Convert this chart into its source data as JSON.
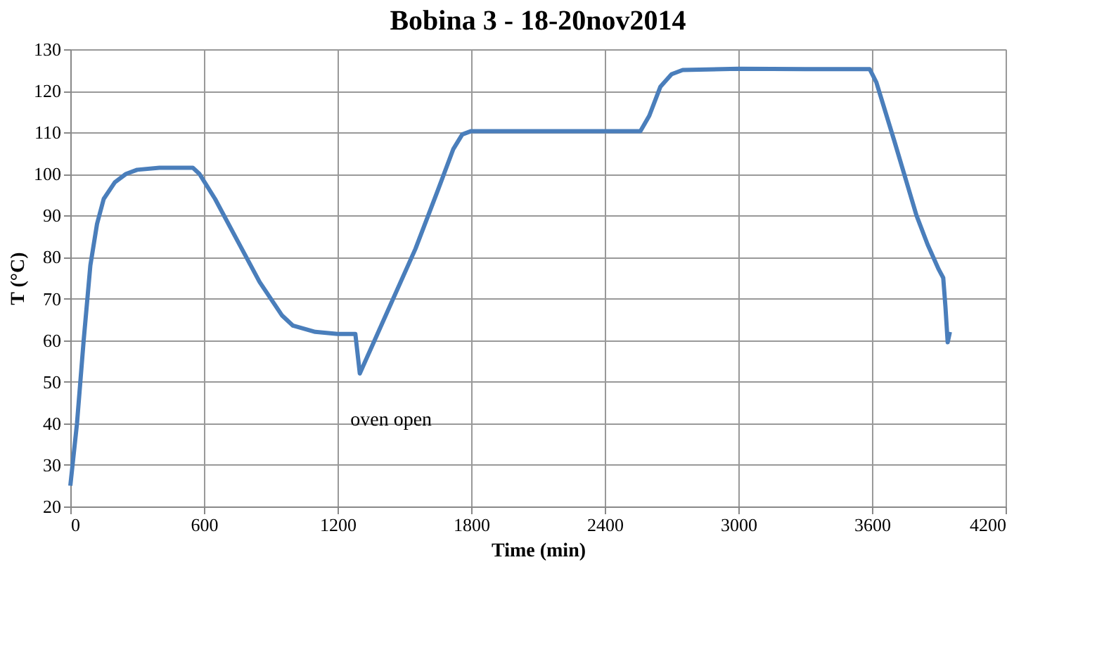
{
  "chart_data": {
    "type": "line",
    "title": "Bobina 3 - 18-20nov2014",
    "xlabel": "Time (min)",
    "ylabel": "T (°C)",
    "x": [
      0,
      30,
      60,
      90,
      120,
      150,
      200,
      250,
      300,
      400,
      550,
      580,
      650,
      750,
      850,
      950,
      1000,
      1100,
      1200,
      1280,
      1300,
      1350,
      1450,
      1550,
      1650,
      1720,
      1760,
      1800,
      2000,
      2300,
      2560,
      2600,
      2650,
      2700,
      2750,
      3000,
      3300,
      3590,
      3620,
      3700,
      3750,
      3800,
      3850,
      3900,
      3920,
      3930,
      3940,
      3950
    ],
    "series": [
      {
        "color": "#4a7ebb",
        "values": [
          25,
          40,
          60,
          78,
          88,
          94,
          98,
          100,
          101,
          101.5,
          101.5,
          100,
          94,
          84,
          74,
          66,
          63.5,
          62,
          61.5,
          61.5,
          52,
          58,
          70,
          82,
          96,
          106,
          109.5,
          110.3,
          110.3,
          110.3,
          110.3,
          114,
          121,
          124,
          125,
          125.3,
          125.2,
          125.2,
          122,
          108,
          99,
          90,
          83,
          77,
          75,
          68,
          59.5,
          62
        ]
      }
    ],
    "xlim": [
      0,
      4200
    ],
    "xticks": [
      0,
      600,
      1200,
      1800,
      2400,
      3000,
      3600,
      4200
    ],
    "ylim": [
      20,
      130
    ],
    "yticks": [
      20,
      30,
      40,
      50,
      60,
      70,
      80,
      90,
      100,
      110,
      120,
      130
    ],
    "grid": true,
    "marker": "none",
    "line_style": "solid",
    "annotations": [
      "oven open"
    ]
  }
}
